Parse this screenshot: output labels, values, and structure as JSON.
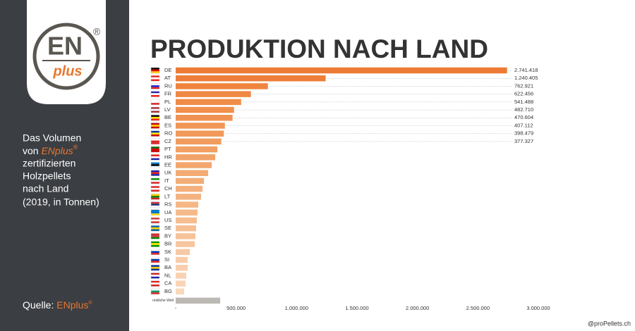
{
  "sidebar": {
    "logo_main": "EN",
    "logo_sub": "plus",
    "logo_registered": "®",
    "description": {
      "line1": "Das Volumen",
      "line2_start": "von",
      "line2_brand": "ENplus",
      "line2_registered": "®",
      "line3": "zertifizierten",
      "line4": "Holzpellets",
      "line5": "nach Land",
      "note": "(2019, in Tonnen)"
    },
    "source_label": "Quelle:",
    "source_brand": "ENplus",
    "source_registered": "®"
  },
  "credit": "@proPellets.ch",
  "chart_data": {
    "type": "hbar",
    "title": "PRODUKTION NACH LAND",
    "categories": [
      "DE",
      "AT",
      "RU",
      "FR",
      "PL",
      "LV",
      "BE",
      "ES",
      "RO",
      "CZ",
      "PT",
      "HR",
      "EE",
      "UK",
      "IT",
      "CH",
      "LT",
      "RS",
      "UA",
      "US",
      "SE",
      "BY",
      "BR",
      "SK",
      "SI",
      "BA",
      "NL",
      "CA",
      "BG",
      "restliche Welt"
    ],
    "values": [
      2741418,
      1240405,
      762921,
      622456,
      541488,
      482710,
      470604,
      407112,
      398479,
      377327,
      345000,
      327000,
      298000,
      268000,
      234000,
      222000,
      210000,
      187000,
      181000,
      175000,
      169000,
      163000,
      158000,
      117000,
      99000,
      99000,
      88000,
      82000,
      70000,
      368000
    ],
    "value_labels": [
      "2.741.418",
      "1.240.405",
      "762.921",
      "622.456",
      "541.488",
      "482.710",
      "470.604",
      "407.112",
      "398.479",
      "377.327",
      null,
      null,
      null,
      null,
      null,
      null,
      null,
      null,
      null,
      null,
      null,
      null,
      null,
      null,
      null,
      null,
      null,
      null,
      null,
      null
    ],
    "colors": [
      "#ee7b35",
      "#ee7e39",
      "#ef843f",
      "#ef8844",
      "#f08c49",
      "#f08f4d",
      "#f09252",
      "#f19656",
      "#f1995a",
      "#f19c5f",
      "#f2a064",
      "#f2a369",
      "#f3a76e",
      "#f3aa73",
      "#f3ad78",
      "#f4b07c",
      "#f4b381",
      "#f5b786",
      "#f5ba8b",
      "#f5bd90",
      "#f6c095",
      "#f6c39a",
      "#f7c69f",
      "#f7c9a4",
      "#f7cca9",
      "#f8cfae",
      "#f8d2b3",
      "#f9d5b8",
      "#f9d8bd",
      "#bcb8b4"
    ],
    "xlim": [
      0,
      3000000
    ],
    "xticks": [
      {
        "value": 0,
        "label": "-"
      },
      {
        "value": 500000,
        "label": "500.000"
      },
      {
        "value": 1000000,
        "label": "1.000.000"
      },
      {
        "value": 1500000,
        "label": "1.500.000"
      },
      {
        "value": 2000000,
        "label": "2.000.000"
      },
      {
        "value": 2500000,
        "label": "2.500.000"
      },
      {
        "value": 3000000,
        "label": "3.000.000"
      }
    ]
  }
}
